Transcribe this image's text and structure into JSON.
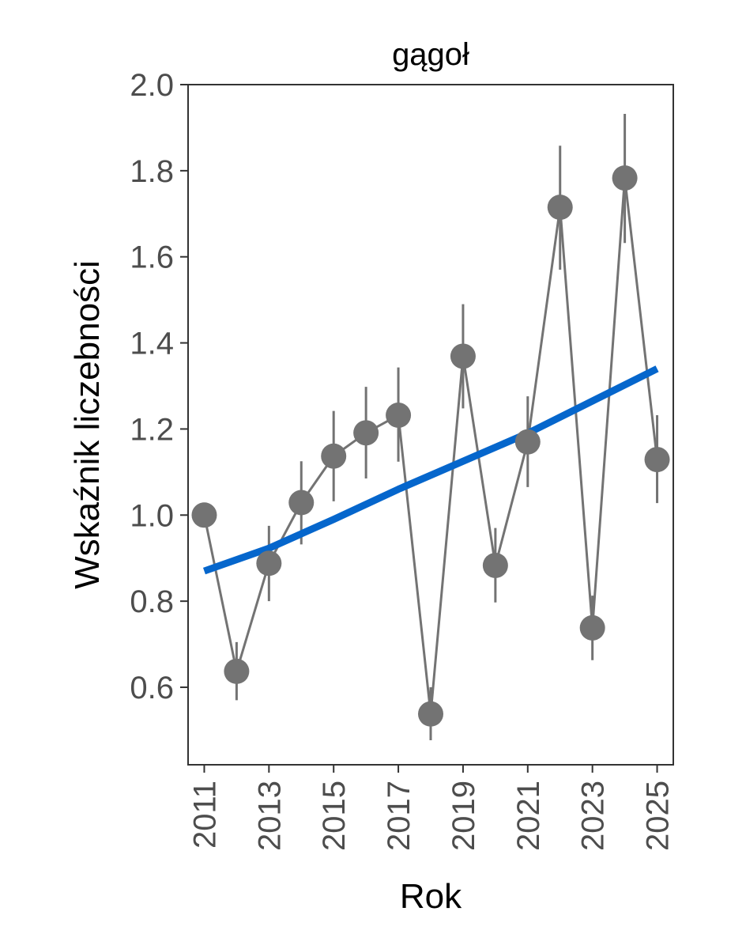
{
  "chart_data": {
    "type": "line",
    "title": "gągoł",
    "xlabel": "Rok",
    "ylabel": "Wskaźnik liczebności",
    "xlim": [
      2010.5,
      2025.5
    ],
    "ylim": [
      0.42,
      2.0
    ],
    "x_ticks": [
      "2011",
      "2013",
      "2015",
      "2017",
      "2019",
      "2021",
      "2023",
      "2025"
    ],
    "y_ticks": [
      "0.6",
      "0.8",
      "1.0",
      "1.2",
      "1.4",
      "1.6",
      "1.8",
      "2.0"
    ],
    "grid": false,
    "legend": "none",
    "series": [
      {
        "x": [
          2011,
          2012,
          2013,
          2014,
          2015,
          2016,
          2017,
          2018,
          2019,
          2020,
          2021,
          2022,
          2023,
          2024,
          2025
        ],
        "values": [
          1.0,
          0.637,
          0.888,
          1.029,
          1.137,
          1.191,
          1.232,
          0.538,
          1.369,
          0.883,
          1.17,
          1.715,
          0.738,
          1.783,
          1.129
        ],
        "lower": [
          1.0,
          0.57,
          0.8,
          0.932,
          1.032,
          1.085,
          1.124,
          0.477,
          1.248,
          0.797,
          1.065,
          1.57,
          0.663,
          1.632,
          1.028
        ],
        "upper": [
          1.0,
          0.705,
          0.975,
          1.125,
          1.242,
          1.298,
          1.343,
          0.6,
          1.49,
          0.97,
          1.276,
          1.858,
          0.813,
          1.932,
          1.232
        ],
        "color": "#737373"
      },
      {
        "x": [
          2011,
          2013,
          2015,
          2017,
          2019,
          2021,
          2023,
          2025
        ],
        "values": [
          0.87,
          0.923,
          0.99,
          1.06,
          1.125,
          1.19,
          1.265,
          1.34
        ],
        "color": "#0566cc"
      }
    ]
  }
}
